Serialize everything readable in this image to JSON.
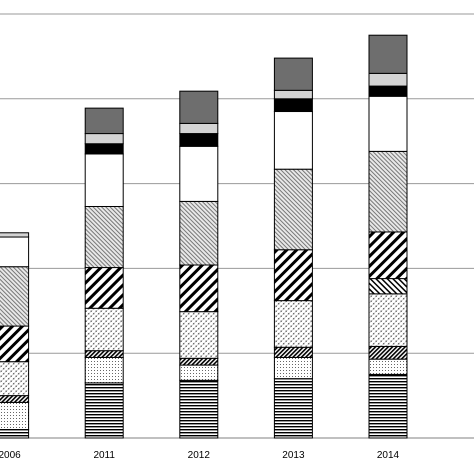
{
  "chart_data": {
    "type": "bar",
    "stacked": true,
    "categories": [
      "",
      "2006",
      "2011",
      "2012",
      "2013",
      "2014"
    ],
    "ylim": [
      0,
      5
    ],
    "grid": true,
    "legend": "none",
    "series": [
      {
        "pattern": "horizontal-lines",
        "values": [
          0.3,
          0.1,
          0.65,
          0.68,
          0.7,
          0.75
        ]
      },
      {
        "pattern": "small-dots",
        "values": [
          0.12,
          0.32,
          0.3,
          0.18,
          0.25,
          0.18
        ]
      },
      {
        "pattern": "dense-diagonal",
        "values": [
          0.0,
          0.08,
          0.08,
          0.08,
          0.12,
          0.15
        ]
      },
      {
        "pattern": "crosshatch-dots",
        "values": [
          0.15,
          0.4,
          0.5,
          0.55,
          0.55,
          0.62
        ]
      },
      {
        "pattern": "stripe",
        "values": [
          0.0,
          0.0,
          0.0,
          0.0,
          0.0,
          0.18
        ]
      },
      {
        "pattern": "wide-diagonal",
        "values": [
          0.45,
          0.42,
          0.48,
          0.55,
          0.6,
          0.55
        ]
      },
      {
        "pattern": "fine-diagonal",
        "values": [
          0.75,
          0.7,
          0.72,
          0.75,
          0.95,
          0.95
        ]
      },
      {
        "pattern": "white",
        "values": [
          0.3,
          0.35,
          0.62,
          0.65,
          0.68,
          0.65
        ]
      },
      {
        "pattern": "black",
        "values": [
          0.0,
          0.0,
          0.12,
          0.15,
          0.15,
          0.12
        ]
      },
      {
        "pattern": "light-gray",
        "values": [
          0.0,
          0.05,
          0.12,
          0.12,
          0.1,
          0.15
        ]
      },
      {
        "pattern": "dark-gray",
        "values": [
          0.0,
          0.0,
          0.3,
          0.38,
          0.38,
          0.45
        ]
      }
    ],
    "colors": {
      "outline": "#000000",
      "dark_gray": "#6e6e6e",
      "light_gray": "#d4d4d4",
      "black": "#000000",
      "white": "#ffffff",
      "grid": "#9a9a9a"
    }
  }
}
